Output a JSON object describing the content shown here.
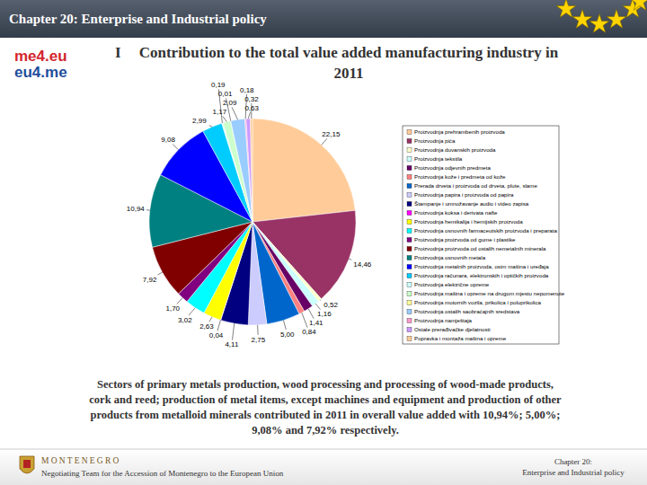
{
  "slide": {
    "header": "Chapter 20: Enterprise and Industrial policy",
    "logo": [
      "me4.eu",
      "eu4.me"
    ],
    "bullet": "I",
    "caption_lines": [
      "Sectors of primary metals production, wood processing and processing of wood-made products,",
      "cork and reed; production of metal items, except machines and equipment and production of other",
      "products from metalloid minerals contributed in 2011 in overall value added with 10,94%; 5,00%;",
      "9,08% and 7,92% respectively."
    ],
    "footer_left": [
      "MONTENEGRO",
      "Negotiating Team for the Accession of Montenegro to the European Union"
    ],
    "footer_right": [
      "Chapter 20:",
      "Enterprise and Industrial policy"
    ]
  },
  "chart_data": {
    "type": "pie",
    "title": "Contribution to the total value added manufacturing industry in 2011",
    "categories": [
      "Proizvodnja prehrambenih proizvoda",
      "Proizvodnja pića",
      "Proizvodnja duvanskih proizvoda",
      "Proizvodnja tekstila",
      "Proizvodnja odjevnih predmeta",
      "Proizvodnja kože i predmeta od kože",
      "Prerada drveta i proizvoda od drveta, plute, slame",
      "Proizvodnja papira i proizvoda od papira",
      "Štampanje i umnožavanje audio i video zapisa",
      "Proizvodnja koksa i derivata nafte",
      "Proizvodnja hemikalija i hemijskih proizvoda",
      "Proizvodnja osnovnih farmaceutskih proizvoda i preparata",
      "Proizvodnja proizvoda od gume i plastike",
      "Proizvodnja proizvoda od ostalih nemetalnih minerala",
      "Proizvodnja osnovnih metala",
      "Proizvodnja metalnih proizvoda, osim mašina i uređaja",
      "Proizvodnja računara, elektronskih i optičkih proizvoda",
      "Proizvodnja električne opreme",
      "Proizvodnja mašina i opreme na drugom mjestu nepomenute",
      "Proizvodnja motornih vozila, prikolica i poluprikolica",
      "Proizvodnja ostalih saobraćajnih sredstava",
      "Proizvodnja namještaja",
      "Ostale prerađivačke djelatnosti",
      "Popravka i montaža mašina i opreme"
    ],
    "values": [
      22.15,
      14.46,
      0.52,
      1.16,
      1.41,
      0.84,
      5.0,
      2.75,
      4.11,
      0.04,
      2.63,
      3.02,
      1.7,
      7.92,
      10.94,
      9.08,
      2.99,
      0.19,
      1.17,
      0.01,
      2.09,
      0.18,
      0.63,
      0.32
    ],
    "value_labels": [
      "22,15",
      "14,46",
      "0,52",
      "1,16",
      "1,41",
      "0,84",
      "5,00",
      "2,75",
      "4,11",
      "0,04",
      "2,63",
      "3,02",
      "1,70",
      "7,92",
      "10,94",
      "9,08",
      "2,99",
      "0,19",
      "1,17",
      "0,01",
      "2,09",
      "0,18",
      "0,63",
      "0,32"
    ],
    "colors": [
      "#ffcc99",
      "#993366",
      "#ffffcc",
      "#ccffff",
      "#660066",
      "#ff8080",
      "#0066cc",
      "#ccccff",
      "#000080",
      "#ff00ff",
      "#ffff00",
      "#00ffff",
      "#800080",
      "#800000",
      "#008080",
      "#0000ff",
      "#00ccff",
      "#ccffff",
      "#ccffcc",
      "#ffff99",
      "#99ccff",
      "#ff99cc",
      "#cc99ff",
      "#ffcc99"
    ],
    "data_labels": true,
    "legend": "right"
  }
}
